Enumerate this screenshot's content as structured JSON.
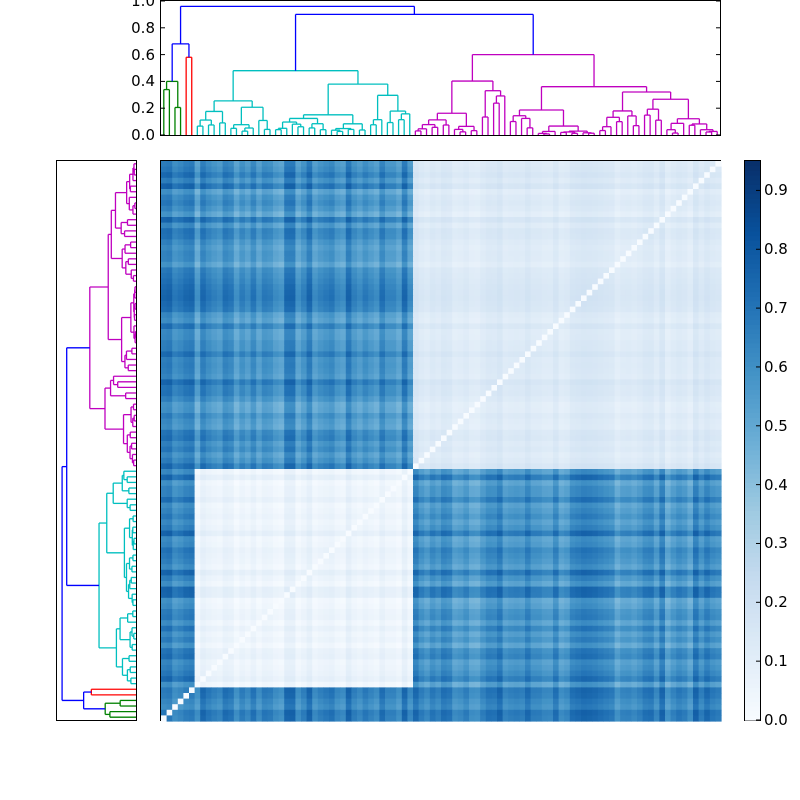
{
  "chart_data": {
    "type": "heatmap",
    "title": "",
    "description": "Clustered correlation/similarity heatmap with hierarchical dendrograms on top and left, and a Blues colorbar on the right",
    "n_leaves": 100,
    "colormap": "Blues",
    "colorbar": {
      "range": [
        0.0,
        0.95
      ],
      "ticks": [
        "0.0",
        "0.1",
        "0.2",
        "0.3",
        "0.4",
        "0.5",
        "0.6",
        "0.7",
        "0.8",
        "0.9"
      ],
      "tick_values": [
        0.0,
        0.1,
        0.2,
        0.3,
        0.4,
        0.5,
        0.6,
        0.7,
        0.8,
        0.9
      ]
    },
    "top_dendrogram": {
      "yaxis_ticks": [
        "0.0",
        "0.2",
        "0.4",
        "0.6",
        "0.8",
        "1.0"
      ],
      "tick_values": [
        0.0,
        0.2,
        0.4,
        0.6,
        0.8,
        1.0
      ],
      "ylim": [
        0.0,
        1.0
      ],
      "clusters": [
        {
          "name": "green",
          "color": "#008000",
          "leaf_start": 0,
          "leaf_end": 3,
          "merge_height": 0.4
        },
        {
          "name": "red",
          "color": "#ff0000",
          "leaf_start": 4,
          "leaf_end": 5,
          "merge_height": 0.58
        },
        {
          "name": "cyan",
          "color": "#00bfbf",
          "leaf_start": 6,
          "leaf_end": 44,
          "merge_height": 0.48
        },
        {
          "name": "magenta",
          "color": "#bf00bf",
          "leaf_start": 45,
          "leaf_end": 99,
          "merge_height": 0.6
        }
      ],
      "links_above_threshold": [
        {
          "color": "#0000ff",
          "join": "green+red",
          "height": 0.68
        },
        {
          "color": "#0000ff",
          "join": "cyan+magenta",
          "height": 0.9
        },
        {
          "color": "#0000ff",
          "join": "root",
          "height": 0.96
        }
      ]
    },
    "heatmap_blocks": [
      {
        "rows": "cyan (6-44)",
        "cols": "cyan (6-44)",
        "value_approx": 0.05
      },
      {
        "rows": "cyan (6-44)",
        "cols": "magenta (45-99)",
        "value_approx": 0.6
      },
      {
        "rows": "magenta (45-99)",
        "cols": "magenta (45-99)",
        "value_approx": 0.12
      },
      {
        "rows": "magenta (45-99)",
        "cols": "cyan (6-44)",
        "value_approx": 0.6
      },
      {
        "rows": "green/red (0-5)",
        "cols": "all",
        "value_approx": 0.7
      }
    ],
    "diagonal_value": 0.0
  },
  "colors": {
    "blue_link": "#0000ff",
    "green": "#008000",
    "red": "#ff0000",
    "cyan": "#00bfbf",
    "magenta": "#bf00bf"
  }
}
